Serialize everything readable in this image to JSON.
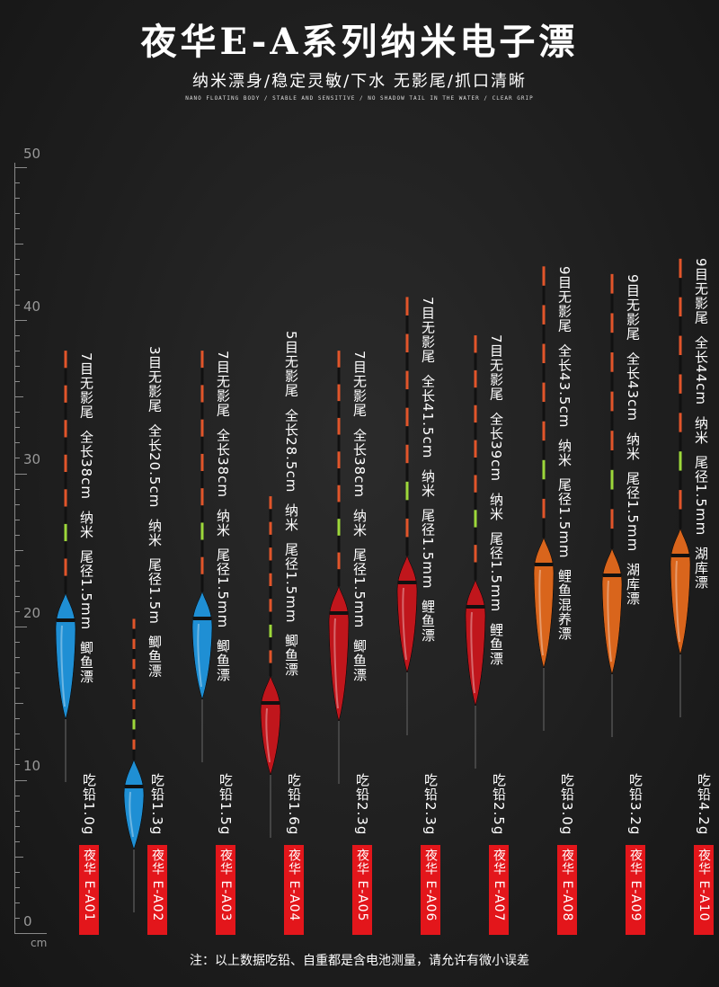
{
  "header": {
    "title": "夜华E-A系列纳米电子漂",
    "subtitle": "纳米漂身/稳定灵敏/下水  无影尾/抓口清晰",
    "subtitle_en": "NANO FLOATING BODY / STABLE AND SENSITIVE / NO SHADOW TAIL IN THE WATER / CLEAR GRIP"
  },
  "ruler": {
    "labels": [
      "50",
      "40",
      "30",
      "20",
      "10",
      "0"
    ],
    "unit": "cm"
  },
  "floats": [
    {
      "spec": "7目无影尾  全长38cm  纳米  尾径1.5mm  鲫鱼漂",
      "lead": "吃铅1.0g",
      "model": "夜华 E-A01",
      "length_cm": 38,
      "body_color": "#1f8fd4"
    },
    {
      "spec": "3目无影尾  全长20.5cm  纳米  尾径1.5m  鲫鱼漂",
      "lead": "吃铅1.3g",
      "model": "夜华 E-A02",
      "length_cm": 20.5,
      "body_color": "#1f8fd4"
    },
    {
      "spec": "7目无影尾  全长38cm  纳米  尾径1.5mm  鲫鱼漂",
      "lead": "吃铅1.5g",
      "model": "夜华 E-A03",
      "length_cm": 38,
      "body_color": "#1f8fd4"
    },
    {
      "spec": "5目无影尾  全长28.5cm  纳米  尾径1.5mm  鲫鱼漂",
      "lead": "吃铅1.6g",
      "model": "夜华 E-A04",
      "length_cm": 28.5,
      "body_color": "#c0161c"
    },
    {
      "spec": "7目无影尾  全长38cm  纳米  尾径1.5mm  鲫鱼漂",
      "lead": "吃铅2.3g",
      "model": "夜华 E-A05",
      "length_cm": 38,
      "body_color": "#c0161c"
    },
    {
      "spec": "7目无影尾  全长41.5cm  纳米  尾径1.5mm  鲤鱼漂",
      "lead": "吃铅2.3g",
      "model": "夜华 E-A06",
      "length_cm": 41.5,
      "body_color": "#c0161c"
    },
    {
      "spec": "7目无影尾  全长39cm  纳米  尾径1.5mm  鲤鱼漂",
      "lead": "吃铅2.5g",
      "model": "夜华 E-A07",
      "length_cm": 39,
      "body_color": "#c0161c"
    },
    {
      "spec": "9目无影尾  全长43.5cm  纳米  尾径1.5mm  鲤鱼混养漂",
      "lead": "吃铅3.0g",
      "model": "夜华 E-A08",
      "length_cm": 43.5,
      "body_color": "#d9651c"
    },
    {
      "spec": "9目无影尾  全长43cm  纳米  尾径1.5mm  湖库漂",
      "lead": "吃铅3.2g",
      "model": "夜华 E-A09",
      "length_cm": 43,
      "body_color": "#d9651c"
    },
    {
      "spec": "9目无影尾  全长44cm  纳米  尾径1.5mm  湖库漂",
      "lead": "吃铅4.2g",
      "model": "夜华 E-A10",
      "length_cm": 44,
      "body_color": "#d9651c"
    }
  ],
  "footer": {
    "note": "注：以上数据吃铅、自重都是含电池测量，请允许有微小误差"
  }
}
